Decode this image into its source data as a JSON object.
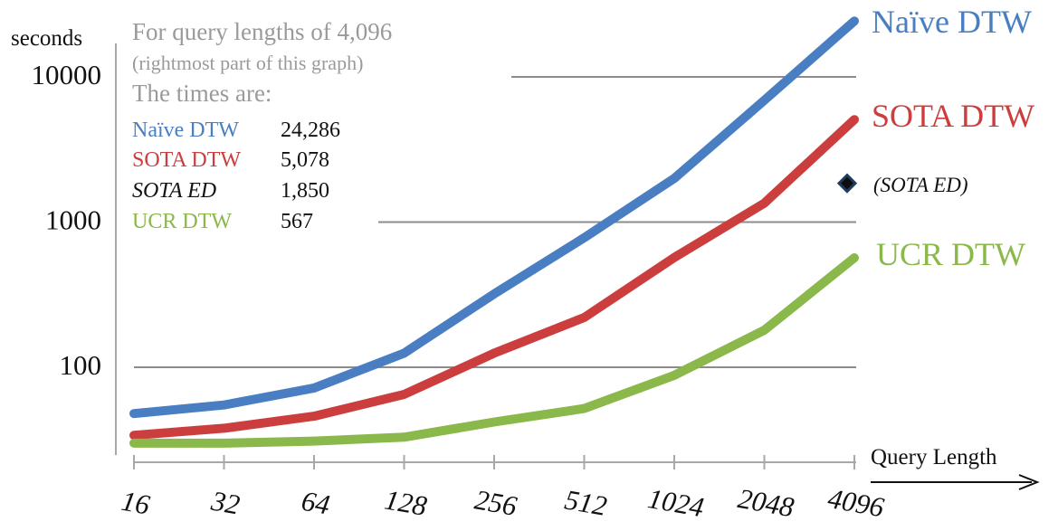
{
  "chart_data": {
    "type": "line",
    "scale": {
      "y": "log",
      "x": "log2"
    },
    "ylabel": "seconds",
    "xlabel": "Query Length",
    "x": [
      16,
      32,
      64,
      128,
      256,
      512,
      1024,
      2048,
      4096
    ],
    "x_tick_labels": [
      "16",
      "32",
      "64",
      "128",
      "256",
      "512",
      "1024",
      "2048",
      "4096"
    ],
    "y_ticks": [
      100,
      1000,
      10000
    ],
    "y_tick_labels": [
      "100",
      "1000",
      "10000"
    ],
    "ylim": [
      25,
      40000
    ],
    "series": [
      {
        "name": "Naïve DTW",
        "color": "#4a7ec2",
        "values": [
          48,
          55,
          72,
          125,
          320,
          780,
          2000,
          6900,
          24286
        ]
      },
      {
        "name": "SOTA DTW",
        "color": "#cc3e3e",
        "values": [
          34,
          38,
          46,
          65,
          125,
          220,
          570,
          1350,
          5078
        ]
      },
      {
        "name": "UCR DTW",
        "color": "#8ab84a",
        "values": [
          30,
          30,
          31,
          33,
          42,
          52,
          88,
          180,
          567
        ]
      }
    ],
    "points": [
      {
        "name": "(SOTA ED)",
        "x": 4096,
        "value": 1850,
        "color": "#1f3b5e"
      }
    ],
    "annotation": {
      "lines": [
        "For query lengths of 4,096",
        "(rightmost part of this graph)",
        "The times are:"
      ],
      "times": [
        {
          "label": "Naïve DTW",
          "value": "24,286",
          "color": "#4a7ec2"
        },
        {
          "label": "SOTA DTW",
          "value": "5,078",
          "color": "#cc3e3e"
        },
        {
          "label": "SOTA ED",
          "value": "1,850",
          "color": "#111111"
        },
        {
          "label": "UCR DTW",
          "value": "567",
          "color": "#8ab84a"
        }
      ]
    },
    "grid": true
  }
}
